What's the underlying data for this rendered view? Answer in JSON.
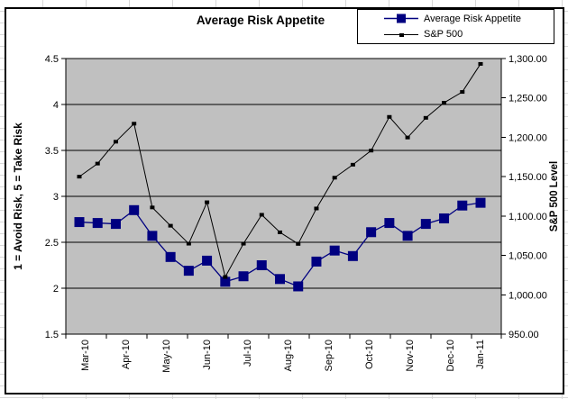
{
  "chart_data": {
    "type": "line",
    "title": "Average Risk Appetite",
    "x_tick_labels": [
      "Mar-10",
      "Apr-10",
      "May-10",
      "Jun-10",
      "Jul-10",
      "Aug-10",
      "Sep-10",
      "Oct-10",
      "Nov-10",
      "Dec-10",
      "Jan-11"
    ],
    "x_axis_note": "23 points at two-week intervals from early Mar-10 to mid Jan-11",
    "series": [
      {
        "name": "Average Risk Appetite",
        "axis": "left",
        "color": "#000080",
        "marker": "large-square",
        "values": [
          2.72,
          2.71,
          2.7,
          2.85,
          2.57,
          2.34,
          2.19,
          2.3,
          2.07,
          2.13,
          2.25,
          2.1,
          2.02,
          2.29,
          2.41,
          2.35,
          2.61,
          2.71,
          2.57,
          2.7,
          2.76,
          2.9,
          2.93
        ]
      },
      {
        "name": "S&P 500",
        "axis": "right",
        "color": "#000000",
        "marker": "small-square",
        "values": [
          1150.0,
          1166.6,
          1194.4,
          1217.3,
          1110.9,
          1087.7,
          1064.9,
          1117.5,
          1022.6,
          1064.9,
          1101.6,
          1079.3,
          1064.6,
          1109.6,
          1148.7,
          1165.2,
          1183.1,
          1225.9,
          1199.7,
          1224.7,
          1243.9,
          1257.6,
          1293.2
        ]
      }
    ],
    "y_left": {
      "title": "1 = Avoid Risk, 5 = Take Risk",
      "min": 1.5,
      "max": 4.5,
      "step": 0.5,
      "tick_labels": [
        "1.5",
        "2",
        "2.5",
        "3",
        "3.5",
        "4",
        "4.5"
      ]
    },
    "y_right": {
      "title": "S&P 500 Level",
      "min": 950,
      "max": 1300,
      "step": 50,
      "tick_labels": [
        "950.00",
        "1,000.00",
        "1,050.00",
        "1,100.00",
        "1,150.00",
        "1,200.00",
        "1,250.00",
        "1,300.00"
      ]
    },
    "legend": {
      "position": "top-right",
      "entries": [
        "Average Risk Appetite",
        "S&P 500"
      ]
    },
    "plot_background": "#c0c0c0",
    "gridlines": "horizontal, black, every 0.5 on left axis"
  }
}
